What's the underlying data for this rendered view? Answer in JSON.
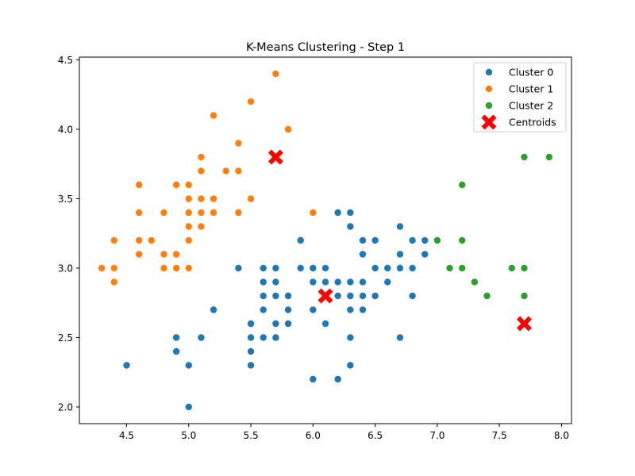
{
  "chart_data": {
    "type": "scatter",
    "title": "K-Means Clustering - Step 1",
    "xlabel": "",
    "ylabel": "",
    "xlim": [
      4.12,
      8.08
    ],
    "ylim": [
      1.88,
      4.52
    ],
    "xticks": [
      "4.5",
      "5.0",
      "5.5",
      "6.0",
      "6.5",
      "7.0",
      "7.5",
      "8.0"
    ],
    "yticks": [
      "2.0",
      "2.5",
      "3.0",
      "3.5",
      "4.0",
      "4.5"
    ],
    "grid": false,
    "legend_position": "top-right",
    "series": [
      {
        "name": "Cluster 0",
        "color": "#1f77b4",
        "marker": "circle",
        "points": [
          [
            4.5,
            2.3
          ],
          [
            4.9,
            2.5
          ],
          [
            4.9,
            2.4
          ],
          [
            5.0,
            2.3
          ],
          [
            5.0,
            2.0
          ],
          [
            5.1,
            2.5
          ],
          [
            5.2,
            2.7
          ],
          [
            5.4,
            3.0
          ],
          [
            5.5,
            2.6
          ],
          [
            5.5,
            2.5
          ],
          [
            5.5,
            2.4
          ],
          [
            5.5,
            2.3
          ],
          [
            5.6,
            3.0
          ],
          [
            5.6,
            2.9
          ],
          [
            5.6,
            2.8
          ],
          [
            5.6,
            2.7
          ],
          [
            5.6,
            2.5
          ],
          [
            5.7,
            3.0
          ],
          [
            5.7,
            2.9
          ],
          [
            5.7,
            2.8
          ],
          [
            5.7,
            2.6
          ],
          [
            5.7,
            2.5
          ],
          [
            5.8,
            2.8
          ],
          [
            5.8,
            2.7
          ],
          [
            5.8,
            2.6
          ],
          [
            5.9,
            3.2
          ],
          [
            5.9,
            3.0
          ],
          [
            6.0,
            3.0
          ],
          [
            6.0,
            2.9
          ],
          [
            6.0,
            2.7
          ],
          [
            6.0,
            2.2
          ],
          [
            6.1,
            3.0
          ],
          [
            6.1,
            2.9
          ],
          [
            6.1,
            2.8
          ],
          [
            6.1,
            2.6
          ],
          [
            6.2,
            3.4
          ],
          [
            6.2,
            2.9
          ],
          [
            6.2,
            2.8
          ],
          [
            6.2,
            2.2
          ],
          [
            6.3,
            3.4
          ],
          [
            6.3,
            3.3
          ],
          [
            6.3,
            2.9
          ],
          [
            6.3,
            2.8
          ],
          [
            6.3,
            2.7
          ],
          [
            6.3,
            2.5
          ],
          [
            6.3,
            2.3
          ],
          [
            6.4,
            3.2
          ],
          [
            6.4,
            3.1
          ],
          [
            6.4,
            2.9
          ],
          [
            6.4,
            2.8
          ],
          [
            6.4,
            2.7
          ],
          [
            6.5,
            3.2
          ],
          [
            6.5,
            3.0
          ],
          [
            6.5,
            2.8
          ],
          [
            6.6,
            3.0
          ],
          [
            6.6,
            2.9
          ],
          [
            6.7,
            3.3
          ],
          [
            6.7,
            3.1
          ],
          [
            6.7,
            3.0
          ],
          [
            6.7,
            2.5
          ],
          [
            6.8,
            3.2
          ],
          [
            6.8,
            3.0
          ],
          [
            6.8,
            2.8
          ],
          [
            6.9,
            3.2
          ],
          [
            6.9,
            3.1
          ]
        ]
      },
      {
        "name": "Cluster 1",
        "color": "#ff7f0e",
        "marker": "circle",
        "points": [
          [
            4.3,
            3.0
          ],
          [
            4.4,
            3.2
          ],
          [
            4.4,
            3.0
          ],
          [
            4.4,
            2.9
          ],
          [
            4.6,
            3.6
          ],
          [
            4.6,
            3.4
          ],
          [
            4.6,
            3.2
          ],
          [
            4.6,
            3.1
          ],
          [
            4.7,
            3.2
          ],
          [
            4.8,
            3.4
          ],
          [
            4.8,
            3.1
          ],
          [
            4.8,
            3.0
          ],
          [
            4.9,
            3.6
          ],
          [
            4.9,
            3.1
          ],
          [
            4.9,
            3.0
          ],
          [
            5.0,
            3.6
          ],
          [
            5.0,
            3.5
          ],
          [
            5.0,
            3.4
          ],
          [
            5.0,
            3.3
          ],
          [
            5.0,
            3.2
          ],
          [
            5.0,
            3.0
          ],
          [
            5.1,
            3.8
          ],
          [
            5.1,
            3.7
          ],
          [
            5.1,
            3.5
          ],
          [
            5.1,
            3.4
          ],
          [
            5.1,
            3.3
          ],
          [
            5.2,
            4.1
          ],
          [
            5.2,
            3.5
          ],
          [
            5.2,
            3.4
          ],
          [
            5.3,
            3.7
          ],
          [
            5.4,
            3.9
          ],
          [
            5.4,
            3.7
          ],
          [
            5.4,
            3.4
          ],
          [
            5.5,
            4.2
          ],
          [
            5.5,
            3.5
          ],
          [
            5.7,
            4.4
          ],
          [
            5.8,
            4.0
          ],
          [
            6.0,
            3.4
          ]
        ]
      },
      {
        "name": "Cluster 2",
        "color": "#2ca02c",
        "marker": "circle",
        "points": [
          [
            7.0,
            3.2
          ],
          [
            7.1,
            3.0
          ],
          [
            7.2,
            3.6
          ],
          [
            7.2,
            3.2
          ],
          [
            7.2,
            3.0
          ],
          [
            7.3,
            2.9
          ],
          [
            7.4,
            2.8
          ],
          [
            7.6,
            3.0
          ],
          [
            7.7,
            3.8
          ],
          [
            7.7,
            3.0
          ],
          [
            7.7,
            2.8
          ],
          [
            7.9,
            3.8
          ]
        ]
      },
      {
        "name": "Centroids",
        "color": "#ff0000",
        "marker": "x",
        "points": [
          [
            5.7,
            3.8
          ],
          [
            6.1,
            2.8
          ],
          [
            7.7,
            2.6
          ]
        ]
      }
    ]
  }
}
